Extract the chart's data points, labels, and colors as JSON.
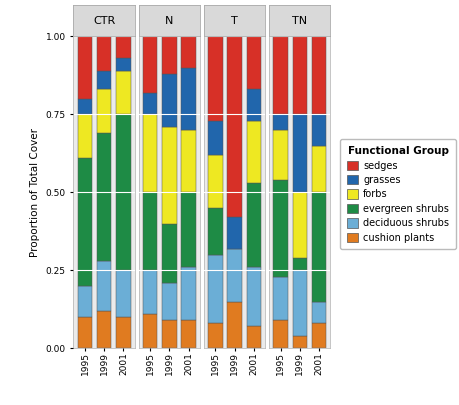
{
  "treatments": [
    "CTR",
    "N",
    "T",
    "TN"
  ],
  "years": [
    "1995",
    "1999",
    "2001"
  ],
  "functional_groups": [
    "cushion plants",
    "deciduous shrubs",
    "evergreen shrubs",
    "forbs",
    "grasses",
    "sedges"
  ],
  "colors": {
    "cushion plants": "#E07B20",
    "deciduous shrubs": "#6BAED6",
    "evergreen shrubs": "#1E8B45",
    "forbs": "#EEE822",
    "grasses": "#2166AC",
    "sedges": "#D73027"
  },
  "data": {
    "CTR": {
      "1995": {
        "cushion plants": 0.1,
        "deciduous shrubs": 0.1,
        "evergreen shrubs": 0.41,
        "forbs": 0.14,
        "grasses": 0.05,
        "sedges": 0.2
      },
      "1999": {
        "cushion plants": 0.12,
        "deciduous shrubs": 0.16,
        "evergreen shrubs": 0.41,
        "forbs": 0.14,
        "grasses": 0.06,
        "sedges": 0.11
      },
      "2001": {
        "cushion plants": 0.1,
        "deciduous shrubs": 0.15,
        "evergreen shrubs": 0.5,
        "forbs": 0.14,
        "grasses": 0.04,
        "sedges": 0.07
      }
    },
    "N": {
      "1995": {
        "cushion plants": 0.11,
        "deciduous shrubs": 0.14,
        "evergreen shrubs": 0.25,
        "forbs": 0.25,
        "grasses": 0.07,
        "sedges": 0.18
      },
      "1999": {
        "cushion plants": 0.09,
        "deciduous shrubs": 0.12,
        "evergreen shrubs": 0.19,
        "forbs": 0.31,
        "grasses": 0.17,
        "sedges": 0.12
      },
      "2001": {
        "cushion plants": 0.09,
        "deciduous shrubs": 0.17,
        "evergreen shrubs": 0.24,
        "forbs": 0.2,
        "grasses": 0.2,
        "sedges": 0.1
      }
    },
    "T": {
      "1995": {
        "cushion plants": 0.08,
        "deciduous shrubs": 0.22,
        "evergreen shrubs": 0.15,
        "forbs": 0.17,
        "grasses": 0.11,
        "sedges": 0.27
      },
      "1999": {
        "cushion plants": 0.15,
        "deciduous shrubs": 0.17,
        "evergreen shrubs": 0.0,
        "forbs": 0.0,
        "grasses": 0.1,
        "sedges": 0.58
      },
      "2001": {
        "cushion plants": 0.07,
        "deciduous shrubs": 0.19,
        "evergreen shrubs": 0.27,
        "forbs": 0.2,
        "grasses": 0.1,
        "sedges": 0.17
      }
    },
    "TN": {
      "1995": {
        "cushion plants": 0.09,
        "deciduous shrubs": 0.14,
        "evergreen shrubs": 0.31,
        "forbs": 0.16,
        "grasses": 0.05,
        "sedges": 0.25
      },
      "1999": {
        "cushion plants": 0.04,
        "deciduous shrubs": 0.21,
        "evergreen shrubs": 0.04,
        "forbs": 0.21,
        "grasses": 0.25,
        "sedges": 0.25
      },
      "2001": {
        "cushion plants": 0.08,
        "deciduous shrubs": 0.07,
        "evergreen shrubs": 0.35,
        "forbs": 0.15,
        "grasses": 0.1,
        "sedges": 0.25
      }
    }
  },
  "ylabel": "Proportion of Total Cover",
  "background_color": "#ffffff",
  "panel_background": "#ebebeb",
  "strip_background": "#d9d9d9"
}
